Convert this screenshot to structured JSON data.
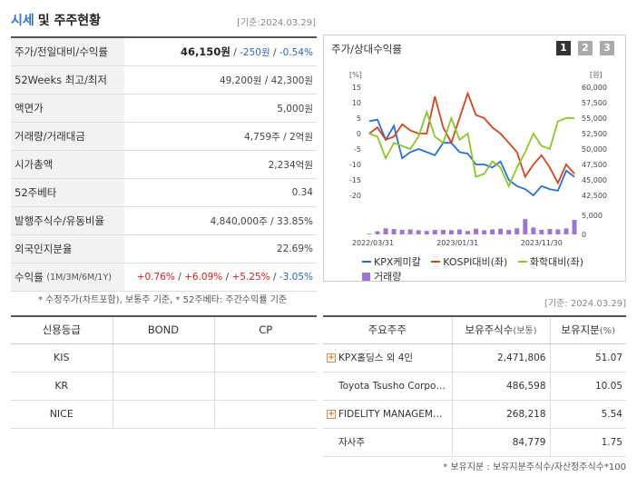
{
  "header": {
    "title_main": "시세",
    "title_rest": "및 주주현황",
    "date": "[기준:2024.03.29]"
  },
  "price_rows": [
    {
      "label": "주가/전일대비/수익률",
      "price": "46,150원",
      "sep1": " / ",
      "change": "-250원",
      "sep2": " / ",
      "rate": "-0.54%"
    },
    {
      "label": "52Weeks 최고/최저",
      "value": "49,200원 / 42,300원"
    },
    {
      "label": "액면가",
      "value": "5,000원"
    },
    {
      "label": "거래량/거래대금",
      "value": "4,759주 / 2억원"
    },
    {
      "label": "시가총액",
      "value": "2,234억원"
    },
    {
      "label": "52주베타",
      "value": "0.34"
    },
    {
      "label": "발행주식수/유동비율",
      "value": "4,840,000주 / 33.85%"
    },
    {
      "label": "외국인지분율",
      "value": "22.69%"
    },
    {
      "label": "수익률",
      "label_small": "(1M/3M/6M/1Y)",
      "r1": "+0.76%",
      "r2": "+6.09%",
      "r3": "+5.25%",
      "r4": "-3.05%",
      "slash": " / "
    }
  ],
  "price_note": "* 수정주가(차트포함), 보통주 기준, * 52주베타: 주간수익률 기준",
  "chart_panel": {
    "title": "주가/상대수익률",
    "buttons": [
      "1",
      "2",
      "3"
    ],
    "date": "[기준: 2024.03.29]"
  },
  "chart_data": {
    "type": "line",
    "left_unit": "[%]",
    "right_unit": "[원]",
    "left_ticks": [
      "15",
      "10",
      "5",
      "0",
      "-5",
      "-10",
      "-15",
      "-20"
    ],
    "left_ylim": [
      -20,
      15
    ],
    "right_ticks": [
      "60,000",
      "57,500",
      "55,000",
      "52,500",
      "50,000",
      "47,500",
      "45,000",
      "42,500"
    ],
    "volume_ticks": [
      "5,000",
      "0"
    ],
    "x_ticks": [
      "2022/03/31",
      "2023/01/31",
      "2023/11/30"
    ],
    "series": [
      {
        "name": "KPX케미칼",
        "color": "#2a6ede",
        "axis": "left",
        "values": [
          4,
          4.5,
          -2,
          2.5,
          -8,
          -6,
          -5,
          -6,
          -7,
          -3,
          -3,
          -6,
          -6.5,
          -10,
          -10,
          -11,
          -9,
          -15,
          -17,
          -18,
          -20,
          -17,
          -18,
          -18.5,
          -12,
          -14
        ]
      },
      {
        "name": "KOSPI대비(좌)",
        "color": "#d8431e",
        "axis": "left",
        "values": [
          0,
          2,
          -2,
          -1,
          3,
          1,
          0,
          0,
          12,
          2,
          -3,
          5,
          13,
          6,
          5,
          2,
          0,
          -3,
          -6,
          -14,
          -10,
          -7,
          -11,
          -16,
          -10,
          -13
        ]
      },
      {
        "name": "화학대비(좌)",
        "color": "#8ac924",
        "axis": "left",
        "values": [
          0,
          -1,
          -8,
          -3,
          -4,
          -5,
          -1,
          7,
          -1,
          -3,
          5,
          -2,
          0,
          -14,
          -13,
          -9,
          -11,
          -17,
          -11,
          -6,
          0,
          -4,
          -5,
          4,
          5,
          5
        ]
      }
    ],
    "volume": {
      "name": "거래량",
      "color": "#9b77d1",
      "values": [
        200,
        800,
        1600,
        1400,
        1200,
        1300,
        1100,
        900,
        1200,
        1200,
        1100,
        1300,
        900,
        1500,
        1100,
        1300,
        1500,
        1200,
        1600,
        4000,
        1800,
        1200,
        1400,
        1300,
        1600,
        3800
      ]
    }
  },
  "credit": {
    "headers": [
      "신용등급",
      "BOND",
      "CP"
    ],
    "rows": [
      {
        "agency": "KIS",
        "bond": "",
        "cp": ""
      },
      {
        "agency": "KR",
        "bond": "",
        "cp": ""
      },
      {
        "agency": "NICE",
        "bond": "",
        "cp": ""
      }
    ]
  },
  "shareholders": {
    "headers": {
      "name": "주요주주",
      "shares": "보유주식수",
      "shares_unit": "(보통)",
      "ratio": "보유지분",
      "ratio_unit": "(%)"
    },
    "rows": [
      {
        "name": "KPX홀딩스 외 4인",
        "shares": "2,471,806",
        "ratio": "51.07",
        "expand": "+"
      },
      {
        "name": "Toyota Tsusho Corporation",
        "shares": "486,598",
        "ratio": "10.05",
        "expand": ""
      },
      {
        "name": "FIDELITY MANAGEMENT & RESEARCH",
        "shares": "268,218",
        "ratio": "5.54",
        "expand": "+"
      },
      {
        "name": "자사주",
        "shares": "84,779",
        "ratio": "1.75",
        "expand": ""
      }
    ],
    "note": "* 보유지분 : 보유지분주식수/자산정주식수*100"
  }
}
